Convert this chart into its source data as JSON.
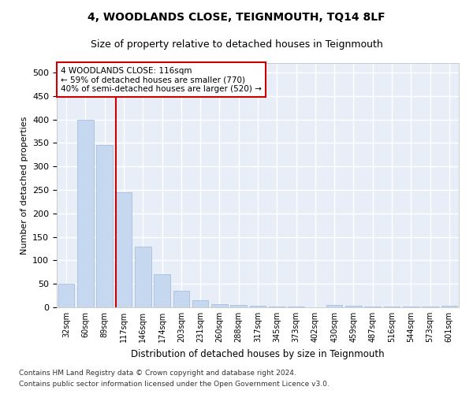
{
  "title": "4, WOODLANDS CLOSE, TEIGNMOUTH, TQ14 8LF",
  "subtitle": "Size of property relative to detached houses in Teignmouth",
  "xlabel": "Distribution of detached houses by size in Teignmouth",
  "ylabel": "Number of detached properties",
  "bar_color": "#c5d8f0",
  "bar_edge_color": "#a0b8d8",
  "bg_color": "#e8eef8",
  "grid_color": "#ffffff",
  "categories": [
    "32sqm",
    "60sqm",
    "89sqm",
    "117sqm",
    "146sqm",
    "174sqm",
    "203sqm",
    "231sqm",
    "260sqm",
    "288sqm",
    "317sqm",
    "345sqm",
    "373sqm",
    "402sqm",
    "430sqm",
    "459sqm",
    "487sqm",
    "516sqm",
    "544sqm",
    "573sqm",
    "601sqm"
  ],
  "values": [
    50,
    400,
    345,
    245,
    130,
    70,
    35,
    15,
    6,
    5,
    3,
    2,
    1,
    0,
    5,
    3,
    2,
    1,
    1,
    1,
    3
  ],
  "vline_x_index": 3,
  "vline_color": "#cc0000",
  "annotation_text": "4 WOODLANDS CLOSE: 116sqm\n← 59% of detached houses are smaller (770)\n40% of semi-detached houses are larger (520) →",
  "annotation_box_color": "#ffffff",
  "annotation_box_edge_color": "#cc0000",
  "ylim": [
    0,
    520
  ],
  "yticks": [
    0,
    50,
    100,
    150,
    200,
    250,
    300,
    350,
    400,
    450,
    500
  ],
  "footnote1": "Contains HM Land Registry data © Crown copyright and database right 2024.",
  "footnote2": "Contains public sector information licensed under the Open Government Licence v3.0."
}
